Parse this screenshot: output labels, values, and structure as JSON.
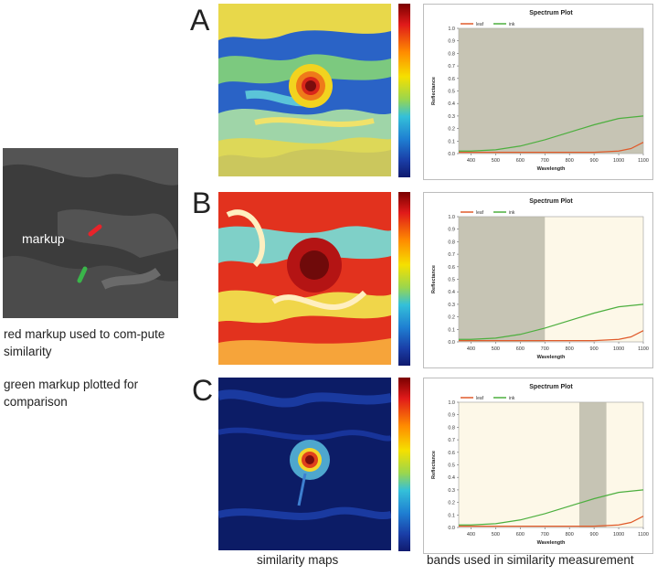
{
  "inset": {
    "markup_label": "markup",
    "colors": {
      "red_markup": "#e8232a",
      "green_markup": "#3ab54a"
    }
  },
  "captions": {
    "red": "red markup used to com-pute similarity",
    "green": "green markup plotted for comparison"
  },
  "panels": [
    {
      "letter": "A",
      "map_style": "mixed"
    },
    {
      "letter": "B",
      "map_style": "hot"
    },
    {
      "letter": "C",
      "map_style": "cold"
    }
  ],
  "bottom_labels": {
    "maps": "similarity maps",
    "bands": "bands used in similarity measurement"
  },
  "chart_data": [
    {
      "type": "line",
      "title": "Spectrum Plot",
      "xlabel": "Wavelength",
      "ylabel": "Reflectance",
      "xlim": [
        350,
        1100
      ],
      "ylim": [
        0,
        1.0
      ],
      "xticks": [
        400,
        500,
        600,
        700,
        800,
        900,
        1000,
        1100
      ],
      "yticks": [
        0.0,
        0.1,
        0.2,
        0.3,
        0.4,
        0.5,
        0.6,
        0.7,
        0.8,
        0.9,
        1.0
      ],
      "legend": [
        "leaf",
        "ink"
      ],
      "band": [
        350,
        1100
      ],
      "series": [
        {
          "name": "leaf",
          "color": "#e05a2a",
          "x": [
            350,
            400,
            500,
            600,
            700,
            800,
            900,
            1000,
            1050,
            1100
          ],
          "y": [
            0.01,
            0.01,
            0.01,
            0.01,
            0.01,
            0.01,
            0.01,
            0.02,
            0.04,
            0.09
          ]
        },
        {
          "name": "ink",
          "color": "#4caf3e",
          "x": [
            350,
            400,
            500,
            600,
            700,
            800,
            900,
            1000,
            1050,
            1100
          ],
          "y": [
            0.02,
            0.02,
            0.03,
            0.06,
            0.11,
            0.17,
            0.23,
            0.28,
            0.29,
            0.3
          ]
        }
      ]
    },
    {
      "type": "line",
      "title": "Spectrum Plot",
      "xlabel": "Wavelength",
      "ylabel": "Reflectance",
      "xlim": [
        350,
        1100
      ],
      "ylim": [
        0,
        1.0
      ],
      "xticks": [
        400,
        500,
        600,
        700,
        800,
        900,
        1000,
        1100
      ],
      "yticks": [
        0.0,
        0.1,
        0.2,
        0.3,
        0.4,
        0.5,
        0.6,
        0.7,
        0.8,
        0.9,
        1.0
      ],
      "legend": [
        "leaf",
        "ink"
      ],
      "band": [
        350,
        700
      ],
      "series": [
        {
          "name": "leaf",
          "color": "#e05a2a",
          "x": [
            350,
            400,
            500,
            600,
            700,
            800,
            900,
            1000,
            1050,
            1100
          ],
          "y": [
            0.01,
            0.01,
            0.01,
            0.01,
            0.01,
            0.01,
            0.01,
            0.02,
            0.04,
            0.09
          ]
        },
        {
          "name": "ink",
          "color": "#4caf3e",
          "x": [
            350,
            400,
            500,
            600,
            700,
            800,
            900,
            1000,
            1050,
            1100
          ],
          "y": [
            0.02,
            0.02,
            0.03,
            0.06,
            0.11,
            0.17,
            0.23,
            0.28,
            0.29,
            0.3
          ]
        }
      ]
    },
    {
      "type": "line",
      "title": "Spectrum Plot",
      "xlabel": "Wavelength",
      "ylabel": "Reflectance",
      "xlim": [
        350,
        1100
      ],
      "ylim": [
        0,
        1.0
      ],
      "xticks": [
        400,
        500,
        600,
        700,
        800,
        900,
        1000,
        1100
      ],
      "yticks": [
        0.0,
        0.1,
        0.2,
        0.3,
        0.4,
        0.5,
        0.6,
        0.7,
        0.8,
        0.9,
        1.0
      ],
      "legend": [
        "leaf",
        "ink"
      ],
      "band": [
        840,
        950
      ],
      "series": [
        {
          "name": "leaf",
          "color": "#e05a2a",
          "x": [
            350,
            400,
            500,
            600,
            700,
            800,
            900,
            1000,
            1050,
            1100
          ],
          "y": [
            0.01,
            0.01,
            0.01,
            0.01,
            0.01,
            0.01,
            0.01,
            0.02,
            0.04,
            0.09
          ]
        },
        {
          "name": "ink",
          "color": "#4caf3e",
          "x": [
            350,
            400,
            500,
            600,
            700,
            800,
            900,
            1000,
            1050,
            1100
          ],
          "y": [
            0.02,
            0.02,
            0.03,
            0.06,
            0.11,
            0.17,
            0.23,
            0.28,
            0.29,
            0.3
          ]
        }
      ]
    }
  ]
}
